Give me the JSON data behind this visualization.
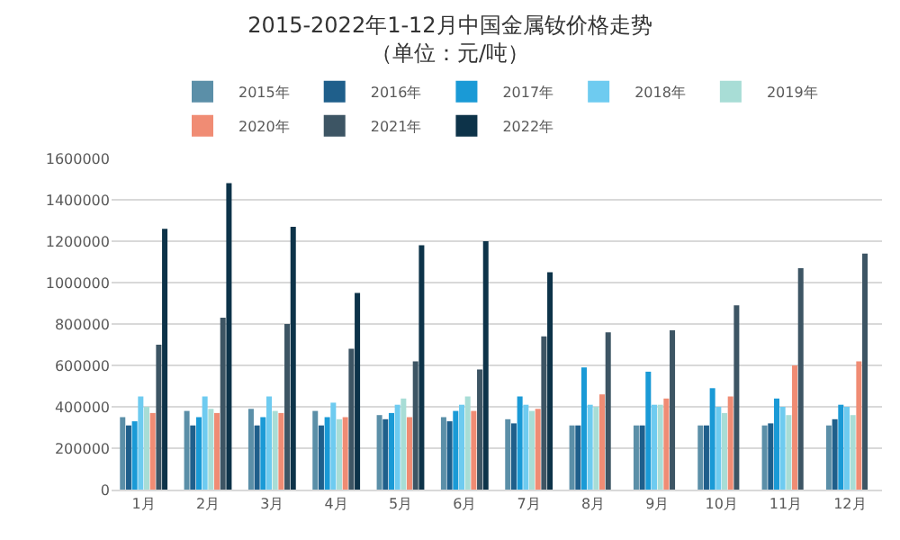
{
  "chart_data": {
    "type": "bar",
    "title": "2015-2022年1-12月中国金属钕价格走势",
    "subtitle": "（单位：元/吨）",
    "categories": [
      "1月",
      "2月",
      "3月",
      "4月",
      "5月",
      "6月",
      "7月",
      "8月",
      "9月",
      "10月",
      "11月",
      "12月"
    ],
    "series": [
      {
        "name": "2015年",
        "color": "#5b8fa8",
        "values": [
          350000,
          380000,
          390000,
          380000,
          360000,
          350000,
          340000,
          310000,
          310000,
          310000,
          310000,
          310000
        ]
      },
      {
        "name": "2016年",
        "color": "#1f5f8b",
        "values": [
          310000,
          310000,
          310000,
          310000,
          340000,
          330000,
          320000,
          310000,
          310000,
          310000,
          320000,
          340000
        ]
      },
      {
        "name": "2017年",
        "color": "#1a9ad6",
        "values": [
          330000,
          350000,
          350000,
          350000,
          370000,
          380000,
          450000,
          590000,
          570000,
          490000,
          440000,
          410000
        ]
      },
      {
        "name": "2018年",
        "color": "#6ecbf0",
        "values": [
          450000,
          450000,
          450000,
          420000,
          410000,
          410000,
          410000,
          410000,
          410000,
          400000,
          400000,
          400000
        ]
      },
      {
        "name": "2019年",
        "color": "#a8ddd6",
        "values": [
          400000,
          390000,
          380000,
          340000,
          440000,
          450000,
          380000,
          400000,
          410000,
          370000,
          360000,
          360000
        ]
      },
      {
        "name": "2020年",
        "color": "#f08c74",
        "values": [
          370000,
          370000,
          370000,
          350000,
          350000,
          380000,
          390000,
          460000,
          440000,
          450000,
          600000,
          620000
        ]
      },
      {
        "name": "2021年",
        "color": "#3d5564",
        "values": [
          700000,
          830000,
          800000,
          680000,
          620000,
          580000,
          740000,
          760000,
          770000,
          890000,
          1070000,
          1140000
        ]
      },
      {
        "name": "2022年",
        "color": "#0d3349",
        "values": [
          1260000,
          1480000,
          1270000,
          950000,
          1180000,
          1200000,
          1050000,
          null,
          null,
          null,
          null,
          null
        ]
      }
    ],
    "ylim": [
      0,
      1600000
    ],
    "yticks": [
      0,
      200000,
      400000,
      600000,
      800000,
      1000000,
      1200000,
      1400000,
      1600000
    ],
    "grid": "y",
    "legend": "top"
  }
}
